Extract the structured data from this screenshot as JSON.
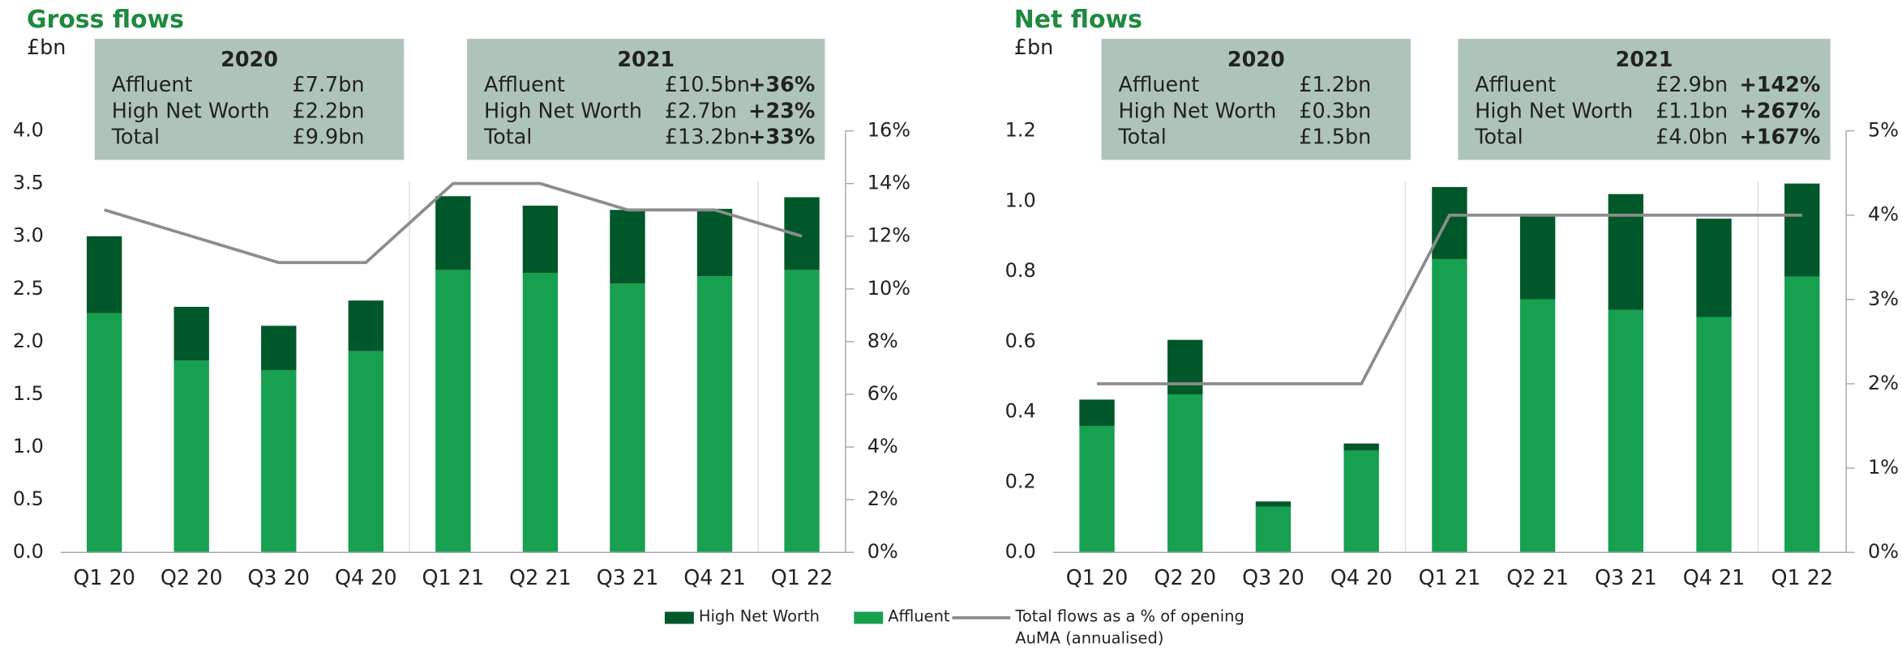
{
  "chart_data": [
    {
      "type": "bar",
      "stacked": true,
      "title": "Gross flows",
      "y_label": "£bn",
      "categories": [
        "Q1 20",
        "Q2 20",
        "Q3 20",
        "Q4 20",
        "Q1 21",
        "Q2 21",
        "Q3 21",
        "Q4 21",
        "Q1 22"
      ],
      "series": [
        {
          "name": "High Net Worth",
          "color": "#00582a",
          "values": [
            0.73,
            0.51,
            0.42,
            0.48,
            0.7,
            0.64,
            0.7,
            0.64,
            0.69
          ]
        },
        {
          "name": "Affluent",
          "color": "#17a050",
          "values": [
            2.27,
            1.82,
            1.73,
            1.91,
            2.68,
            2.65,
            2.55,
            2.62,
            2.68
          ]
        },
        {
          "name": "Total flows as a % of opening AuMA (annualised)",
          "type": "line",
          "axis": "y2",
          "color": "#8c8c8c",
          "values": [
            13,
            12,
            11,
            11,
            14,
            14,
            13,
            13,
            12
          ]
        }
      ],
      "ylim": [
        0,
        4
      ],
      "yticks": [
        {
          "value": 0,
          "label": "0.0"
        },
        0.5,
        {
          "value": 1,
          "label": "1.0"
        },
        1.5,
        {
          "value": 2,
          "label": "2.0"
        },
        2.5,
        {
          "value": 3,
          "label": "3.0"
        },
        3.5,
        {
          "value": 4,
          "label": "4.0"
        }
      ],
      "y2lim": [
        0,
        16
      ],
      "y2ticks": [
        {
          "value": 0,
          "label": "0%"
        },
        {
          "value": 2,
          "label": "2%"
        },
        {
          "value": 4,
          "label": "4%"
        },
        {
          "value": 6,
          "label": "6%"
        },
        {
          "value": 8,
          "label": "8%"
        },
        {
          "value": 10,
          "label": "10%"
        },
        {
          "value": 12,
          "label": "12%"
        },
        {
          "value": 14,
          "label": "14%"
        },
        {
          "value": 16,
          "label": "16%"
        }
      ],
      "boxes": [
        {
          "title": "2020",
          "rows": [
            [
              "Affluent",
              "£7.7bn"
            ],
            [
              "High Net Worth",
              "£2.2bn"
            ],
            [
              "Total",
              "£9.9bn"
            ]
          ]
        },
        {
          "title": "2021",
          "rows": [
            [
              "Affluent",
              "£10.5bn",
              "+36%"
            ],
            [
              "High Net Worth",
              "£2.7bn",
              "+23%"
            ],
            [
              "Total",
              "£13.2bn",
              "+33%"
            ]
          ]
        }
      ]
    },
    {
      "type": "bar",
      "stacked": true,
      "title": "Net flows",
      "y_label": "£bn",
      "categories": [
        "Q1 20",
        "Q2 20",
        "Q3 20",
        "Q4 20",
        "Q1 21",
        "Q2 21",
        "Q3 21",
        "Q4 21",
        "Q1 22"
      ],
      "series": [
        {
          "color": "#00582a",
          "values": [
            0.075,
            0.155,
            0.015,
            0.02,
            0.205,
            0.24,
            0.33,
            0.28,
            0.265
          ]
        },
        {
          "color": "#17a050",
          "values": [
            0.36,
            0.45,
            0.13,
            0.29,
            0.835,
            0.72,
            0.69,
            0.67,
            0.785
          ]
        },
        {
          "type": "line",
          "axis": "y2",
          "color": "#8c8c8c",
          "values": [
            2,
            2,
            2,
            2,
            4,
            4,
            4,
            4,
            4
          ]
        }
      ],
      "ylim": [
        0,
        1.2
      ],
      "yticks": [
        {
          "value": 0,
          "label": "0.0"
        },
        0.2,
        0.4,
        0.6,
        0.8,
        {
          "value": 1,
          "label": "1.0"
        },
        1.2
      ],
      "y2lim": [
        0,
        5
      ],
      "y2ticks": [
        {
          "value": 0,
          "label": "0%"
        },
        {
          "value": 1,
          "label": "1%"
        },
        {
          "value": 2,
          "label": "2%"
        },
        {
          "value": 3,
          "label": "3%"
        },
        {
          "value": 4,
          "label": "4%"
        },
        {
          "value": 5,
          "label": "5%"
        }
      ],
      "boxes": [
        {
          "title": "2020",
          "rows": [
            [
              "Affluent",
              "£1.2bn"
            ],
            [
              "High Net Worth",
              "£0.3bn"
            ],
            [
              "Total",
              "£1.5bn"
            ]
          ]
        },
        {
          "title": "2021",
          "rows": [
            [
              "Affluent",
              "£2.9bn",
              "+142%"
            ],
            [
              "High Net Worth",
              "£1.1bn",
              "+267%"
            ],
            [
              "Total",
              "£4.0bn",
              "+167%"
            ]
          ]
        }
      ]
    }
  ]
}
